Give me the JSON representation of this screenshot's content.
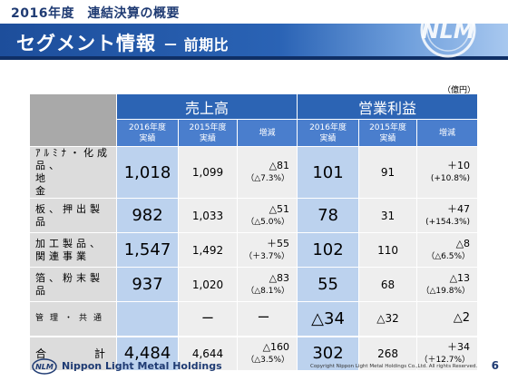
{
  "header": {
    "title": "2016年度　連結決算の概要"
  },
  "banner": {
    "title": "セグメント情報",
    "subtitle": "－ 前期比"
  },
  "unit": "（億円）",
  "table": {
    "groups": {
      "sales": "売上高",
      "op_income": "営業利益"
    },
    "subheaders": {
      "cur_line1": "2016年度",
      "cur_line2": "実績",
      "prev_line1": "2015年度",
      "prev_line2": "実績",
      "diff": "増減"
    },
    "rows": [
      {
        "label1": "ｱﾙﾐﾅ・化成品、",
        "label2": "地　　　　金",
        "sales_cur": "1,018",
        "sales_prev": "1,099",
        "sales_diff": "△81",
        "sales_pct": "（△7.3%）",
        "op_cur": "101",
        "op_prev": "91",
        "op_diff": "＋10",
        "op_pct": "(+10.8%)"
      },
      {
        "label1": "板、押出製品",
        "label2": "",
        "sales_cur": "982",
        "sales_prev": "1,033",
        "sales_diff": "△51",
        "sales_pct": "（△5.0%）",
        "op_cur": "78",
        "op_prev": "31",
        "op_diff": "＋47",
        "op_pct": "(+154.3%)"
      },
      {
        "label1": "加工製品、",
        "label2": "関連事業",
        "sales_cur": "1,547",
        "sales_prev": "1,492",
        "sales_diff": "＋55",
        "sales_pct": "（＋3.7%）",
        "op_cur": "102",
        "op_prev": "110",
        "op_diff": "△8",
        "op_pct": "（△6.5%）"
      },
      {
        "label1": "箔、粉末製品",
        "label2": "",
        "sales_cur": "937",
        "sales_prev": "1,020",
        "sales_diff": "△83",
        "sales_pct": "（△8.1%）",
        "op_cur": "55",
        "op_prev": "68",
        "op_diff": "△13",
        "op_pct": "（△19.8%）"
      },
      {
        "label1": "管理・共通",
        "label2": "",
        "sales_cur": "",
        "sales_prev": "ー",
        "sales_diff": "ー",
        "sales_pct": "",
        "op_cur": "△34",
        "op_prev": "△32",
        "op_diff": "△2",
        "op_pct": ""
      }
    ],
    "total": {
      "label_left": "合",
      "label_right": "計",
      "sales_cur": "4,484",
      "sales_prev": "4,644",
      "sales_diff": "△160",
      "sales_pct": "（△3.5%）",
      "op_cur": "302",
      "op_prev": "268",
      "op_diff": "＋34",
      "op_pct": "（＋12.7%）"
    }
  },
  "footer": {
    "company": "Nippon Light Metal Holdings",
    "copyright": "Copyright Nippon Light Metal Holdings Co.,Ltd. All rights Reserved.",
    "page": "6"
  },
  "colors": {
    "brand_blue": "#1d4e9b",
    "header_cell": "#2c64b4",
    "subheader_cell": "#4a7ecd",
    "value_cell": "#bcd2ee"
  },
  "icons": {
    "logo": "nlm-logo-mark",
    "footer_logo": "nlm-logo-small"
  }
}
